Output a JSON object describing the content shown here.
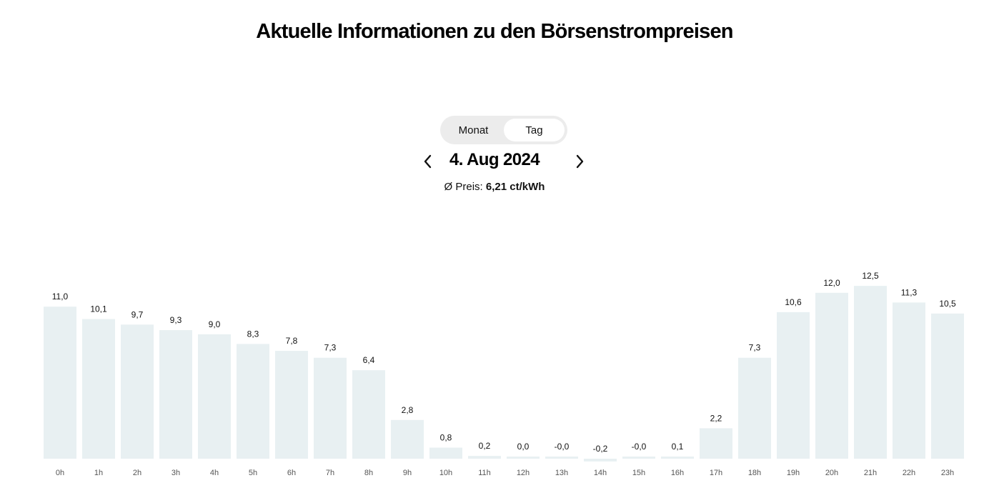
{
  "header": {
    "title": "Aktuelle Informationen zu den Börsenstrompreisen"
  },
  "toggle": {
    "options": [
      "Monat",
      "Tag"
    ],
    "selected": "Tag"
  },
  "date_nav": {
    "date": "4. Aug 2024"
  },
  "average": {
    "label": "Ø Preis:",
    "value": "6,21 ct/kWh"
  },
  "colors": {
    "bar": "#e8f0f2",
    "text": "#111111",
    "tick": "#555555",
    "toggle_track": "#ececec",
    "toggle_active": "#ffffff"
  },
  "chart_data": {
    "type": "bar",
    "categories": [
      "0h",
      "1h",
      "2h",
      "3h",
      "4h",
      "5h",
      "6h",
      "7h",
      "8h",
      "9h",
      "10h",
      "11h",
      "12h",
      "13h",
      "14h",
      "15h",
      "16h",
      "17h",
      "18h",
      "19h",
      "20h",
      "21h",
      "22h",
      "23h"
    ],
    "values": [
      11.0,
      10.1,
      9.7,
      9.3,
      9.0,
      8.3,
      7.8,
      7.3,
      6.4,
      2.8,
      0.8,
      0.2,
      0.0,
      -0.0,
      -0.2,
      -0.0,
      0.1,
      2.2,
      7.3,
      10.6,
      12.0,
      12.5,
      11.3,
      10.5
    ],
    "labels": [
      "11,0",
      "10,1",
      "9,7",
      "9,3",
      "9,0",
      "8,3",
      "7,8",
      "7,3",
      "6,4",
      "2,8",
      "0,8",
      "0,2",
      "0,0",
      "-0,0",
      "-0,2",
      "-0,0",
      "0,1",
      "2,2",
      "7,3",
      "10,6",
      "12,0",
      "12,5",
      "11,3",
      "10,5"
    ],
    "unit": "ct/kWh",
    "grid": false,
    "legend": "none"
  }
}
